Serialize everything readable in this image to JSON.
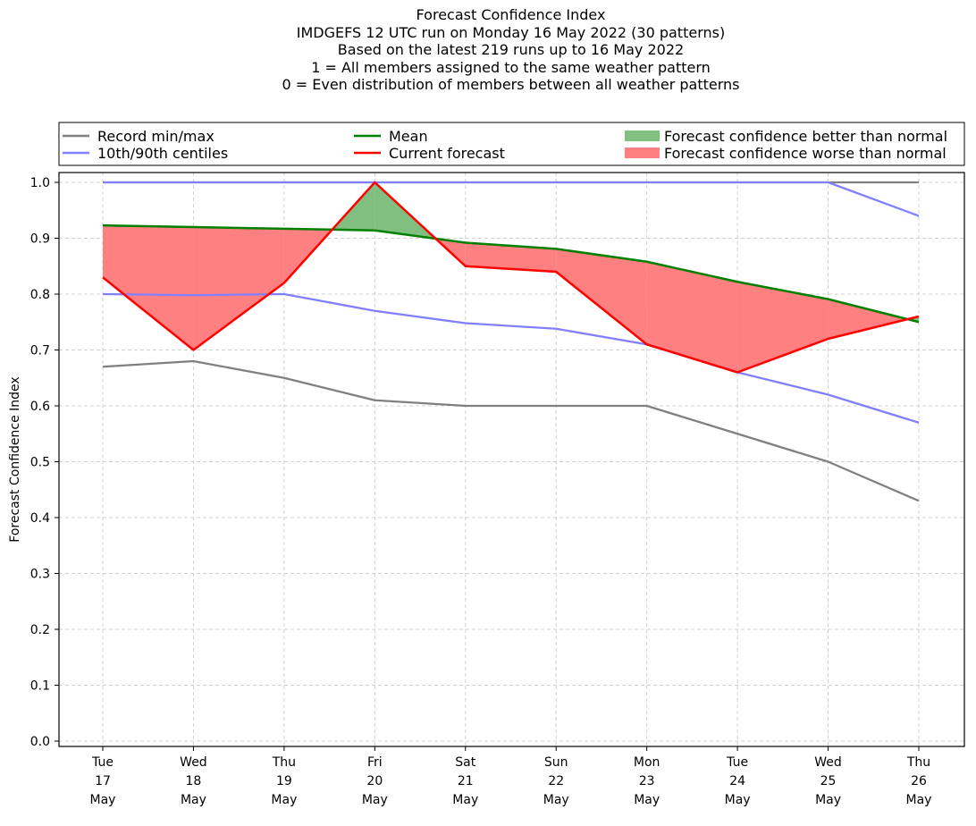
{
  "chart_data": {
    "type": "line",
    "title_lines": [
      "Forecast Confidence Index",
      "IMDGEFS 12 UTC run on Monday 16 May 2022 (30 patterns)",
      "Based on the latest 219 runs up to 16 May 2022",
      "1 = All members assigned to the same weather pattern",
      "0 = Even distribution of members between all weather patterns"
    ],
    "ylabel": "Forecast Confidence Index",
    "xlabel": "",
    "ylim": [
      0,
      1
    ],
    "yticks": [
      "0.0",
      "0.1",
      "0.2",
      "0.3",
      "0.4",
      "0.5",
      "0.6",
      "0.7",
      "0.8",
      "0.9",
      "1.0"
    ],
    "categories": [
      [
        "Tue",
        "17",
        "May"
      ],
      [
        "Wed",
        "18",
        "May"
      ],
      [
        "Thu",
        "19",
        "May"
      ],
      [
        "Fri",
        "20",
        "May"
      ],
      [
        "Sat",
        "21",
        "May"
      ],
      [
        "Sun",
        "22",
        "May"
      ],
      [
        "Mon",
        "23",
        "May"
      ],
      [
        "Tue",
        "24",
        "May"
      ],
      [
        "Wed",
        "25",
        "May"
      ],
      [
        "Thu",
        "26",
        "May"
      ]
    ],
    "grid": true,
    "legend_position": "top",
    "series": {
      "record_max": [
        1.0,
        1.0,
        1.0,
        1.0,
        1.0,
        1.0,
        1.0,
        1.0,
        1.0,
        1.0
      ],
      "record_min": [
        0.67,
        0.68,
        0.65,
        0.61,
        0.6,
        0.6,
        0.6,
        0.55,
        0.5,
        0.43
      ],
      "centile_90": [
        1.0,
        1.0,
        1.0,
        1.0,
        1.0,
        1.0,
        1.0,
        1.0,
        1.0,
        0.94
      ],
      "centile_10": [
        0.8,
        0.798,
        0.8,
        0.77,
        0.748,
        0.738,
        0.71,
        0.66,
        0.62,
        0.57
      ],
      "mean": [
        0.923,
        0.92,
        0.917,
        0.914,
        0.892,
        0.881,
        0.858,
        0.822,
        0.791,
        0.75
      ],
      "current": [
        0.83,
        0.7,
        0.82,
        1.0,
        0.85,
        0.84,
        0.71,
        0.66,
        0.72,
        0.76
      ]
    },
    "legend": [
      {
        "label": "Record min/max",
        "color": "#808080",
        "kind": "line"
      },
      {
        "label": "10th/90th centiles",
        "color": "#8080ff",
        "kind": "line"
      },
      {
        "label": "Mean",
        "color": "#008000",
        "kind": "line"
      },
      {
        "label": "Current forecast",
        "color": "#ff0000",
        "kind": "line"
      },
      {
        "label": "Forecast confidence better than normal",
        "color": "#80c080",
        "kind": "patch"
      },
      {
        "label": "Forecast confidence worse than normal",
        "color": "#ff8080",
        "kind": "patch"
      }
    ],
    "colors": {
      "better": "#80bf80",
      "worse": "#ff8080",
      "record": "#808080",
      "centile": "#8080ff",
      "mean": "#008000",
      "current": "#ff0000",
      "centile_overlap": "#4040c0"
    }
  }
}
